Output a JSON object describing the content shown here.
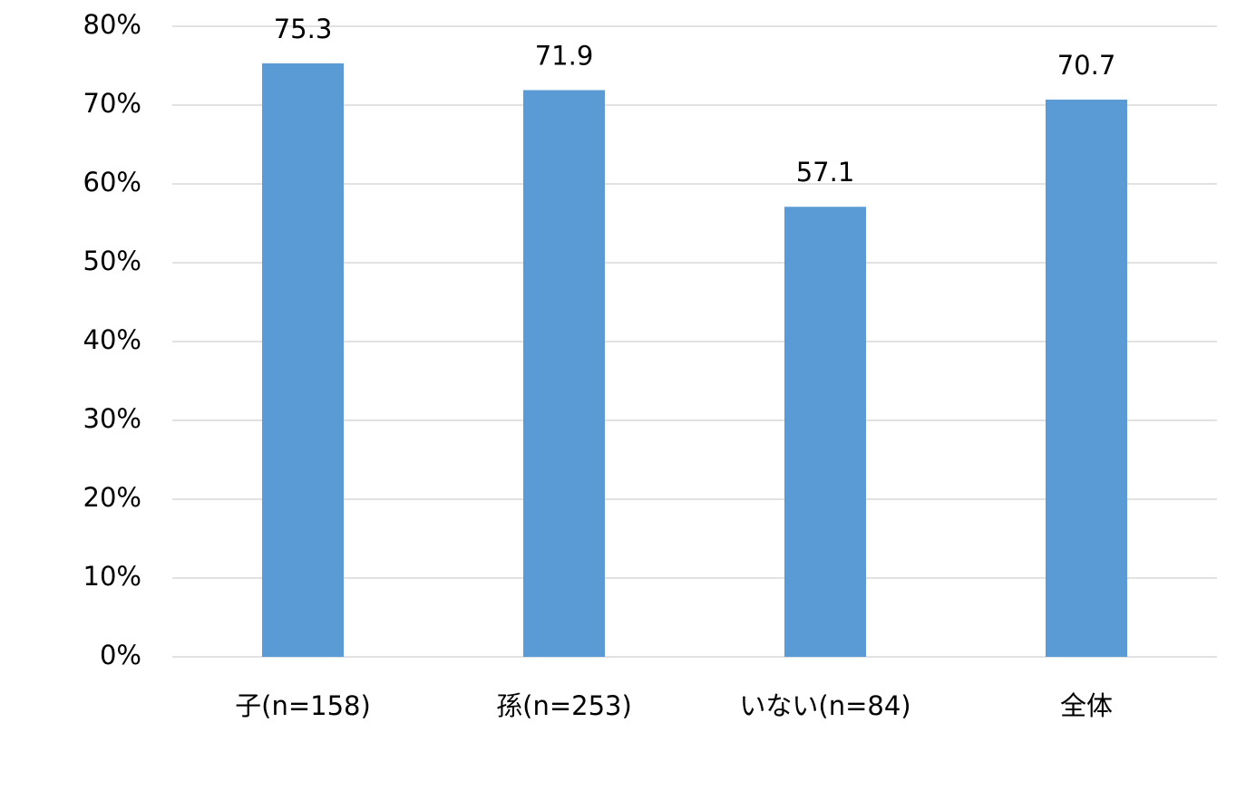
{
  "chart_data": {
    "type": "bar",
    "categories": [
      "子(n=158)",
      "孫(n=253)",
      "いない(n=84)",
      "全体"
    ],
    "values": [
      75.3,
      71.9,
      57.1,
      70.7
    ],
    "color": "#5b9bd5",
    "ylim": [
      0,
      80
    ],
    "yticks": [
      {
        "value": 0,
        "label": "0%"
      },
      {
        "value": 10,
        "label": "10%"
      },
      {
        "value": 20,
        "label": "20%"
      },
      {
        "value": 30,
        "label": "30%"
      },
      {
        "value": 40,
        "label": "40%"
      },
      {
        "value": 50,
        "label": "50%"
      },
      {
        "value": 60,
        "label": "60%"
      },
      {
        "value": 70,
        "label": "70%"
      },
      {
        "value": 80,
        "label": "80%"
      }
    ],
    "grid": true
  }
}
